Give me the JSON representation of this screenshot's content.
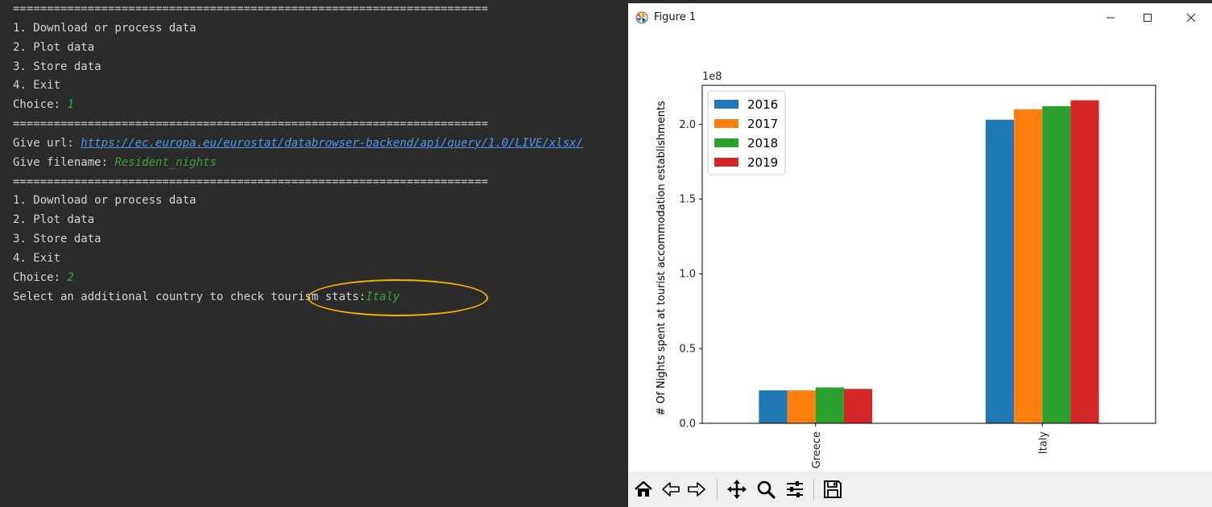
{
  "console": {
    "separator": "======================================================================",
    "menu_1": [
      "1. Download or process data",
      "2. Plot data",
      "3. Store data",
      "4. Exit"
    ],
    "choice_label": "Choice: ",
    "choice_1_value": "1",
    "url_label": "Give url: ",
    "url_value": "https://ec.europa.eu/eurostat/databrowser-backend/api/query/1.0/LIVE/xlsx/",
    "filename_label": "Give filename: ",
    "filename_value": "Resident_nights",
    "menu_2": [
      "1. Download or process data",
      "2. Plot data",
      "3. Store data",
      "4. Exit"
    ],
    "choice_2_value": "2",
    "country_prompt": "Select an additional country to check tourism stats:",
    "country_value": "Italy",
    "colors": {
      "background": "#2b2b2b",
      "text": "#d4d4d4",
      "input": "#3f9f3f",
      "link": "#5394ec",
      "highlight": "#f4b400"
    }
  },
  "figure": {
    "title": "Figure 1"
  },
  "chart_data": {
    "type": "bar",
    "categories": [
      "Greece",
      "Italy"
    ],
    "series": [
      {
        "name": "2016",
        "values": [
          0.22,
          2.03
        ],
        "color": "#1f77b4"
      },
      {
        "name": "2017",
        "values": [
          0.22,
          2.1
        ],
        "color": "#ff7f0e"
      },
      {
        "name": "2018",
        "values": [
          0.24,
          2.12
        ],
        "color": "#2ca02c"
      },
      {
        "name": "2019",
        "values": [
          0.23,
          2.16
        ],
        "color": "#d62728"
      }
    ],
    "ylabel": "# Of Nights spent at tourist accommodation establishments",
    "xlabel": "",
    "offset_label": "1e8",
    "ylim": [
      0,
      2.26
    ],
    "yticks": [
      "0.0",
      "0.5",
      "1.0",
      "1.5",
      "2.0"
    ],
    "legend_position": "top-left",
    "grid": false
  },
  "toolbar": {
    "buttons": [
      "home-icon",
      "back-icon",
      "forward-icon",
      "pan-icon",
      "zoom-icon",
      "configure-subplots-icon",
      "save-icon"
    ]
  }
}
